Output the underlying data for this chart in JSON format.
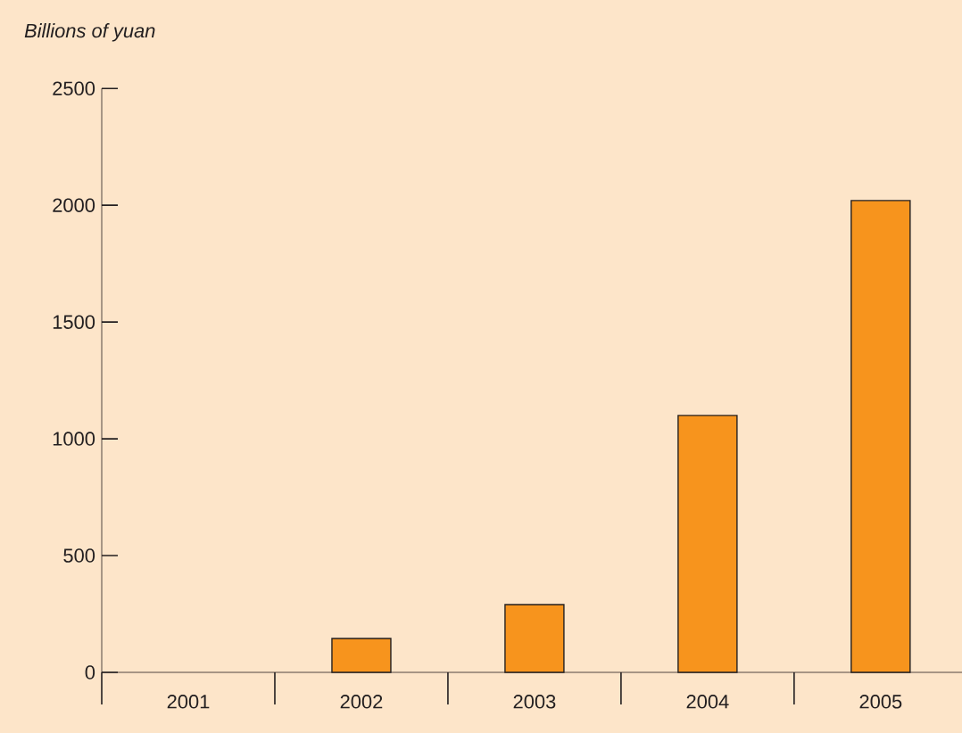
{
  "chart_data": {
    "type": "bar",
    "ylabel": "Billions of yuan",
    "categories": [
      "2001",
      "2002",
      "2003",
      "2004",
      "2005"
    ],
    "values": [
      null,
      145,
      290,
      1100,
      2020
    ],
    "color": "#f7941d",
    "ylim": [
      0,
      2500
    ],
    "yticks": [
      0,
      500,
      1000,
      1500,
      2000,
      2500
    ]
  }
}
